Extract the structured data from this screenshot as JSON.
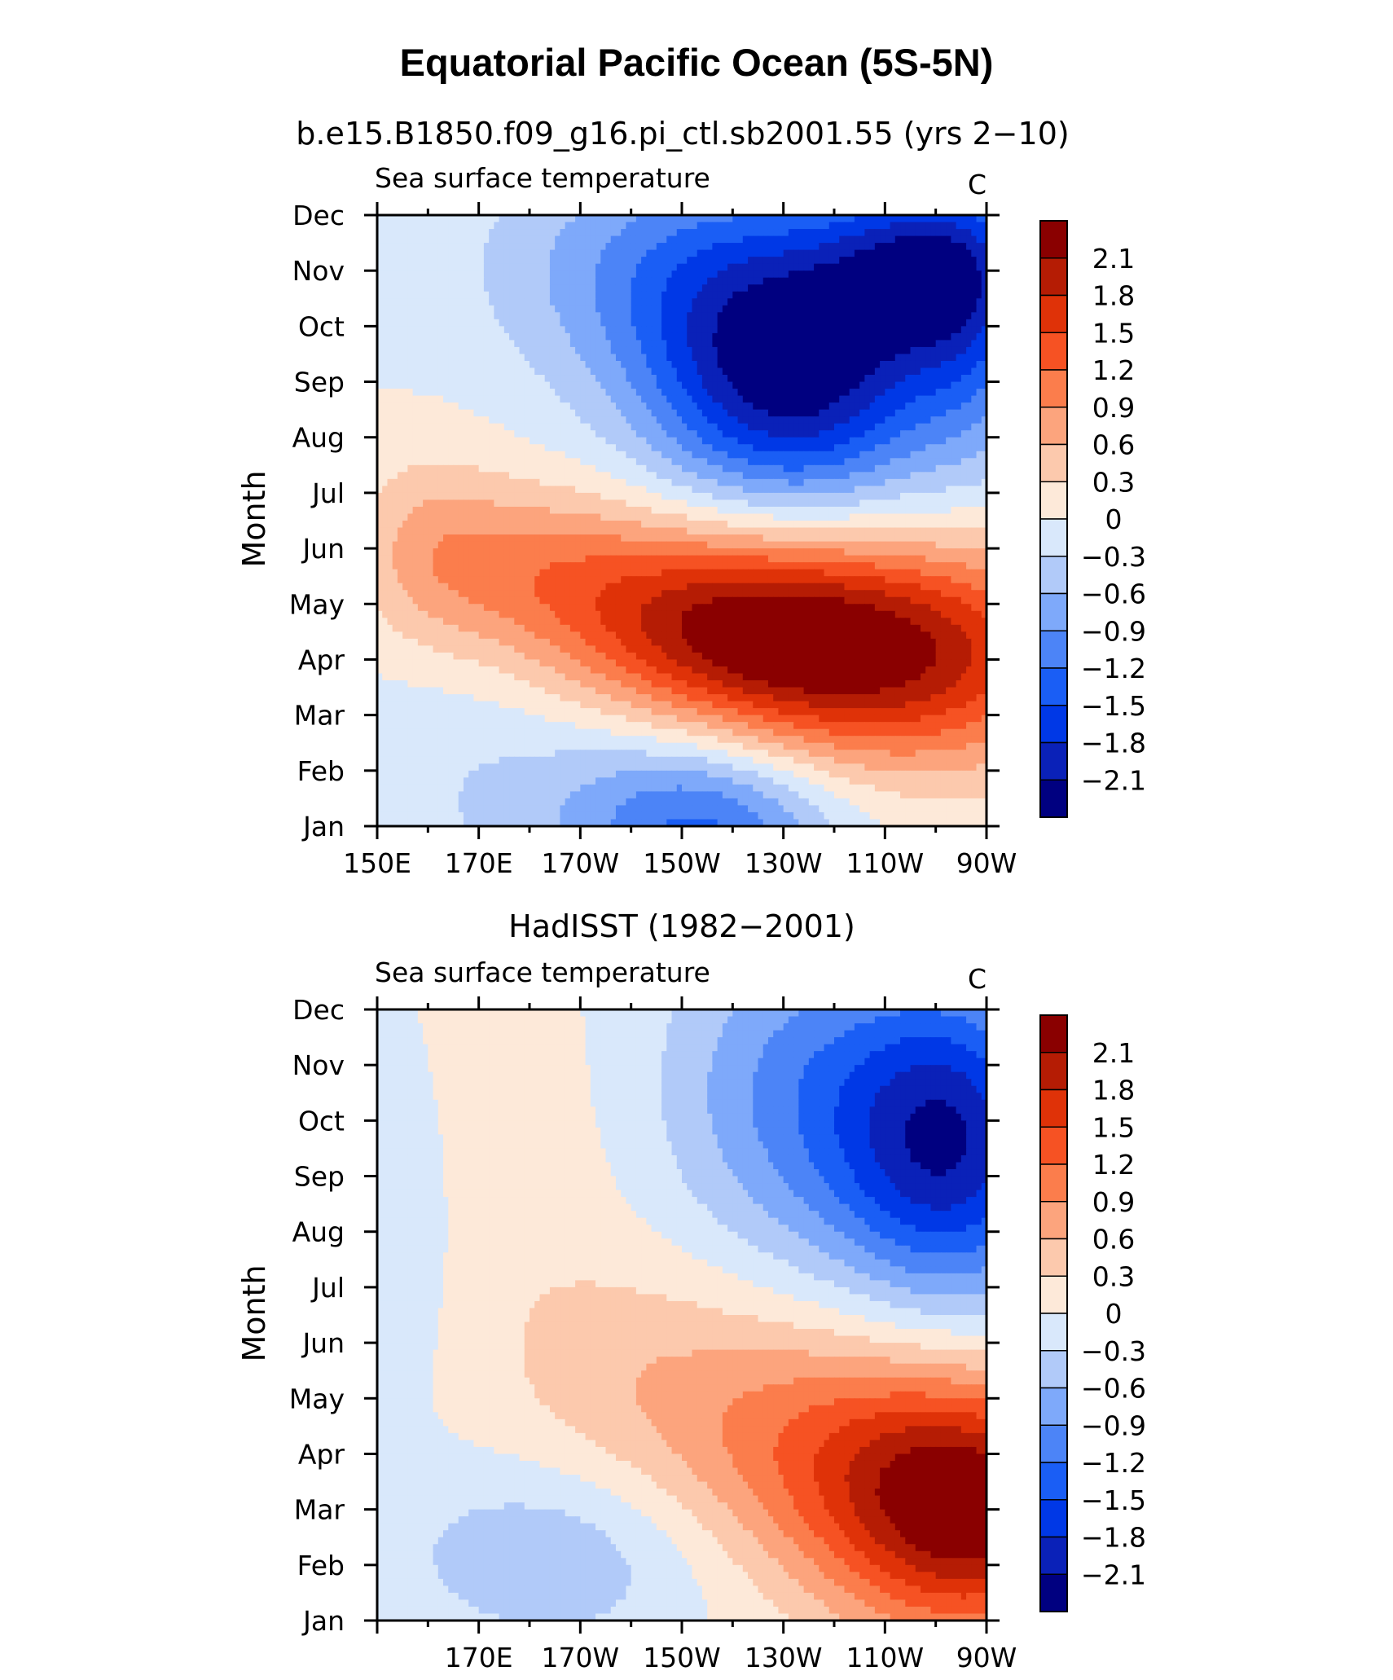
{
  "title": "Equatorial Pacific Ocean (5S-5N)",
  "colors": [
    "#000080",
    "#0a21b8",
    "#0038e6",
    "#1a5ef5",
    "#4c84f7",
    "#7ea9fa",
    "#b1caf9",
    "#d9e8fb",
    "#fde9d9",
    "#fcc9ad",
    "#fca47d",
    "#fb7d4c",
    "#f65223",
    "#df3208",
    "#b51c04",
    "#8a0000"
  ],
  "chart_data": [
    {
      "type": "heatmap",
      "title": "b.e15.B1850.f09_g16.pi_ctl.sb2001.55 (yrs 2−10)",
      "left_label": "Sea surface temperature",
      "units": "C",
      "ylabel": "Month",
      "x_ticks": [
        "150E",
        "170E",
        "170W",
        "150W",
        "130W",
        "110W",
        "90W"
      ],
      "x_lon": [
        150,
        170,
        190,
        210,
        230,
        250,
        270
      ],
      "xlim": [
        150,
        270
      ],
      "y_ticks": [
        "Jan",
        "Feb",
        "Mar",
        "Apr",
        "May",
        "Jun",
        "Jul",
        "Aug",
        "Sep",
        "Oct",
        "Nov",
        "Dec"
      ],
      "colorbar_labels": [
        "2.1",
        "1.8",
        "1.5",
        "1.2",
        "0.9",
        "0.6",
        "0.3",
        "0",
        "−0.3",
        "−0.6",
        "−0.9",
        "−1.2",
        "−1.5",
        "−1.8",
        "−2.1"
      ],
      "levels": [
        -2.1,
        -1.8,
        -1.5,
        -1.2,
        -0.9,
        -0.6,
        -0.3,
        0,
        0.3,
        0.6,
        0.9,
        1.2,
        1.5,
        1.8,
        2.1
      ],
      "anomalies": [
        {
          "lon": 215,
          "month": 1,
          "amp": -1.25,
          "sx": 18,
          "sy": 1.3
        },
        {
          "lon": 180,
          "month": 2,
          "amp": -0.35,
          "sx": 25,
          "sy": 2
        },
        {
          "lon": 245,
          "month": 4.1,
          "amp": 2.25,
          "sx": 32,
          "sy": 1.4
        },
        {
          "lon": 215,
          "month": 4.8,
          "amp": 1.0,
          "sx": 22,
          "sy": 1.2
        },
        {
          "lon": 180,
          "month": 5.6,
          "amp": 0.8,
          "sx": 18,
          "sy": 1.1
        },
        {
          "lon": 160,
          "month": 6.1,
          "amp": 0.45,
          "sx": 10,
          "sy": 1.2
        },
        {
          "lon": 232,
          "month": 9.1,
          "amp": -2.2,
          "sx": 20,
          "sy": 1.7
        },
        {
          "lon": 258,
          "month": 11.1,
          "amp": -1.5,
          "sx": 14,
          "sy": 1.1
        },
        {
          "lon": 210,
          "month": 11.1,
          "amp": -0.9,
          "sx": 26,
          "sy": 1.5
        },
        {
          "lon": 268,
          "month": 10,
          "amp": -0.8,
          "sx": 10,
          "sy": 1.8
        }
      ]
    },
    {
      "type": "heatmap",
      "title": "HadISST (1982−2001)",
      "left_label": "Sea surface temperature",
      "units": "C",
      "ylabel": "Month",
      "x_ticks": [
        "170E",
        "170W",
        "150W",
        "130W",
        "110W",
        "90W"
      ],
      "x_lon": [
        170,
        190,
        210,
        230,
        250,
        270
      ],
      "xlim": [
        150,
        270
      ],
      "y_ticks": [
        "Jan",
        "Feb",
        "Mar",
        "Apr",
        "May",
        "Jun",
        "Jul",
        "Aug",
        "Sep",
        "Oct",
        "Nov",
        "Dec"
      ],
      "colorbar_labels": [
        "2.1",
        "1.8",
        "1.5",
        "1.2",
        "0.9",
        "0.6",
        "0.3",
        "0",
        "−0.3",
        "−0.6",
        "−0.9",
        "−1.2",
        "−1.5",
        "−1.8",
        "−2.1"
      ],
      "levels": [
        -2.1,
        -1.8,
        -1.5,
        -1.2,
        -0.9,
        -0.6,
        -0.3,
        0,
        0.3,
        0.6,
        0.9,
        1.2,
        1.5,
        1.8,
        2.1
      ],
      "anomalies": [
        {
          "lon": 267,
          "month": 3.0,
          "amp": 2.3,
          "sx": 20,
          "sy": 1.6
        },
        {
          "lon": 235,
          "month": 4.2,
          "amp": 0.9,
          "sx": 22,
          "sy": 1.6
        },
        {
          "lon": 200,
          "month": 5.5,
          "amp": 0.4,
          "sx": 20,
          "sy": 1.6
        },
        {
          "lon": 263,
          "month": 9.6,
          "amp": -2.0,
          "sx": 16,
          "sy": 2.0
        },
        {
          "lon": 232,
          "month": 10.5,
          "amp": -0.9,
          "sx": 18,
          "sy": 2.2
        },
        {
          "lon": 185,
          "month": 2.2,
          "amp": -0.55,
          "sx": 22,
          "sy": 1.2
        },
        {
          "lon": 152,
          "month": 7.8,
          "amp": -0.3,
          "sx": 8,
          "sy": 2.0
        },
        {
          "lon": 178,
          "month": 9,
          "amp": 0.15,
          "sx": 14,
          "sy": 2.5
        }
      ]
    }
  ]
}
